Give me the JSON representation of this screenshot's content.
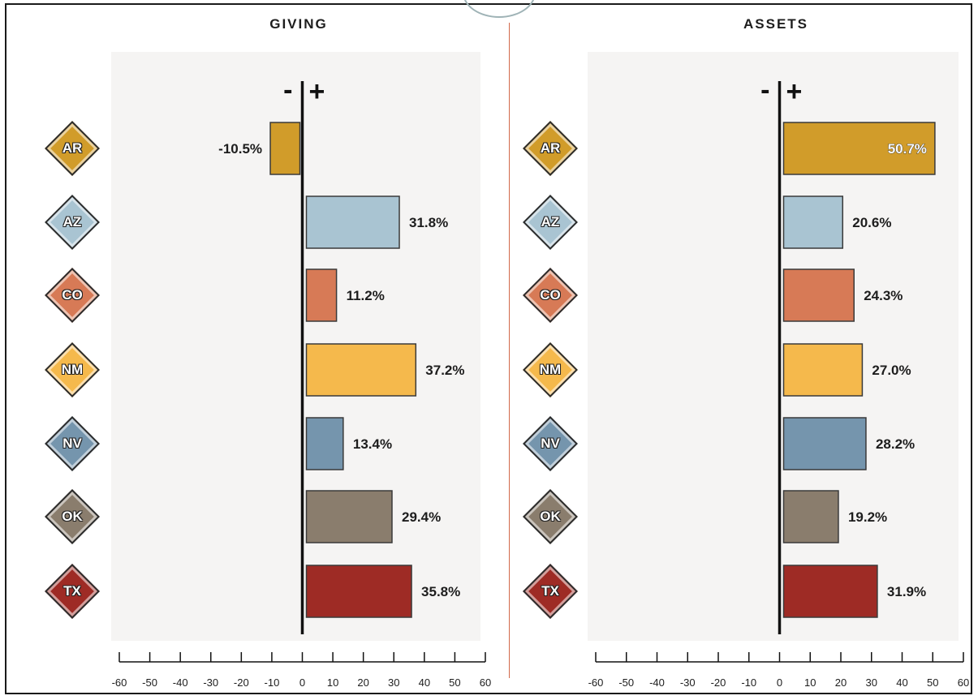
{
  "colors": {
    "AR": "#d19c2a",
    "AZ": "#a9c4d2",
    "CO": "#d77a56",
    "NM": "#f5b94c",
    "NV": "#7595ad",
    "OK": "#8a7d6d",
    "TX": "#9e2b25",
    "plot_background": "#f5f4f3",
    "divider": "#d2694a"
  },
  "signs": {
    "minus": "-",
    "plus": "+"
  },
  "chart_data": [
    {
      "type": "bar",
      "orientation": "horizontal",
      "title": "GIVING",
      "categories": [
        "AR",
        "AZ",
        "CO",
        "NM",
        "NV",
        "OK",
        "TX"
      ],
      "values": [
        -10.5,
        31.8,
        11.2,
        37.2,
        13.4,
        29.4,
        35.8
      ],
      "data_labels": [
        "-10.5%",
        "31.8%",
        "11.2%",
        "37.2%",
        "13.4%",
        "29.4%",
        "35.8%"
      ],
      "xlim": [
        -60,
        60
      ],
      "xticks": [
        -60,
        -50,
        -40,
        -30,
        -20,
        -10,
        0,
        10,
        20,
        30,
        40,
        50,
        60
      ],
      "xlabel": "",
      "ylabel": "",
      "grid": false
    },
    {
      "type": "bar",
      "orientation": "horizontal",
      "title": "ASSETS",
      "categories": [
        "AR",
        "AZ",
        "CO",
        "NM",
        "NV",
        "OK",
        "TX"
      ],
      "values": [
        50.7,
        20.6,
        24.3,
        27.0,
        28.2,
        19.2,
        31.9
      ],
      "data_labels": [
        "50.7%",
        "20.6%",
        "24.3%",
        "27.0%",
        "28.2%",
        "19.2%",
        "31.9%"
      ],
      "xlim": [
        -60,
        60
      ],
      "xticks": [
        -60,
        -50,
        -40,
        -30,
        -20,
        -10,
        0,
        10,
        20,
        30,
        40,
        50,
        60
      ],
      "xlabel": "",
      "ylabel": "",
      "grid": false
    }
  ]
}
